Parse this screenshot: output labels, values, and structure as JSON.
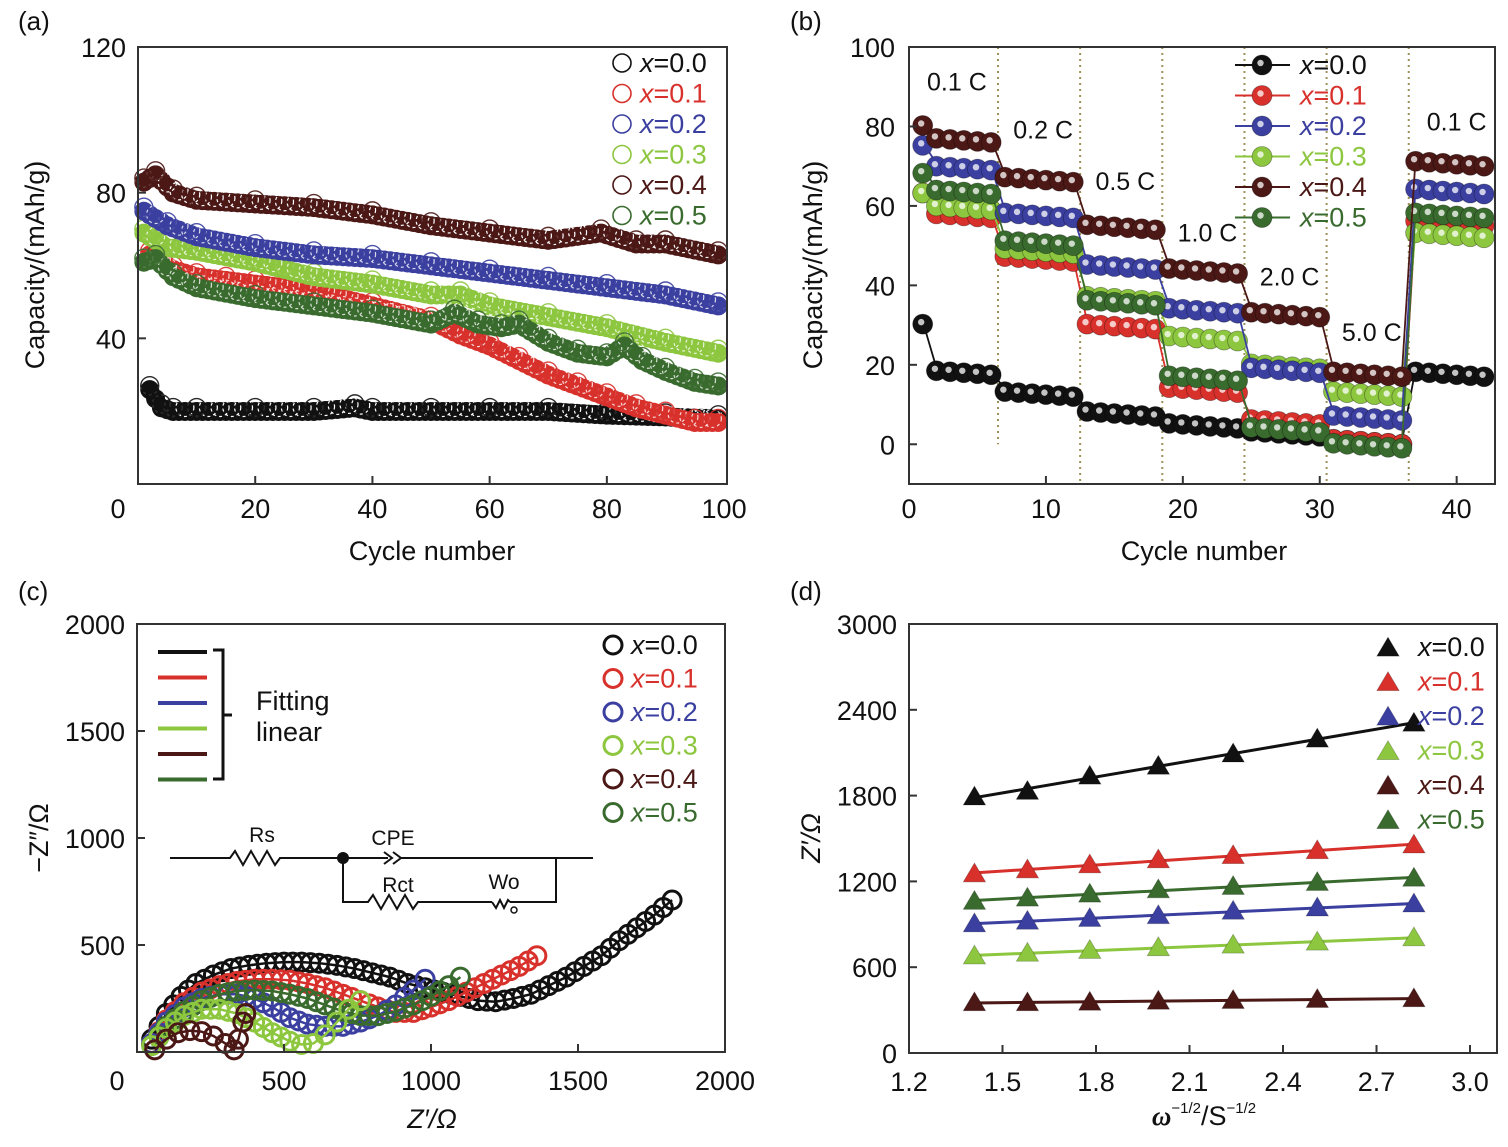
{
  "colors": {
    "x0.0": "#111111",
    "x0.1": "#d8312c",
    "x0.2": "#3b40a0",
    "x0.3": "#8dc63f",
    "x0.4": "#4b1816",
    "x0.5": "#3a6b2e",
    "divider": "#9e9158",
    "axis": "#333333"
  },
  "chart_data": [
    {
      "id": "a",
      "panel_label": "(a)",
      "type": "scatter",
      "marker": "open-circle-filled-trace",
      "xlabel": "Cycle number",
      "ylabel": "Capacity/(mAh/g)",
      "xlim": [
        0,
        100
      ],
      "ylim": [
        0,
        120
      ],
      "xticks": [
        0,
        20,
        40,
        60,
        80,
        100
      ],
      "yticks": [
        40,
        80,
        120
      ],
      "legend": "top-right",
      "series": [
        {
          "name": "x=0.0",
          "prefix": "x",
          "suffix": "=0.0",
          "color_key": "x0.0",
          "x": [
            2,
            4,
            6,
            10,
            20,
            30,
            37,
            40,
            50,
            60,
            70,
            80,
            90,
            99
          ],
          "y": [
            27,
            22,
            21,
            21,
            21,
            21,
            22,
            21,
            21,
            21,
            21,
            20,
            19.5,
            19
          ]
        },
        {
          "name": "x=0.1",
          "prefix": "x",
          "suffix": "=0.1",
          "color_key": "x0.1",
          "x": [
            2,
            6,
            10,
            15,
            20,
            30,
            40,
            50,
            55,
            60,
            65,
            70,
            75,
            80,
            85,
            90,
            95,
            99
          ],
          "y": [
            64,
            60,
            58,
            57,
            56,
            54,
            50,
            46,
            42,
            39,
            35,
            31,
            28,
            25,
            22,
            20,
            18,
            18
          ]
        },
        {
          "name": "x=0.2",
          "prefix": "x",
          "suffix": "=0.2",
          "color_key": "x0.2",
          "x": [
            1,
            5,
            10,
            20,
            30,
            40,
            50,
            60,
            70,
            80,
            90,
            99
          ],
          "y": [
            76,
            72,
            69,
            66,
            64,
            63,
            61,
            59,
            57,
            55,
            53,
            50
          ]
        },
        {
          "name": "x=0.3",
          "prefix": "x",
          "suffix": "=0.3",
          "color_key": "x0.3",
          "x": [
            1,
            5,
            10,
            20,
            25,
            30,
            40,
            50,
            55,
            60,
            70,
            80,
            90,
            99
          ],
          "y": [
            70,
            66,
            65,
            62,
            60,
            58,
            56,
            53,
            53,
            50,
            47,
            44,
            40,
            37
          ]
        },
        {
          "name": "x=0.4",
          "prefix": "x",
          "suffix": "=0.4",
          "color_key": "x0.4",
          "x": [
            1,
            3,
            6,
            10,
            20,
            30,
            40,
            50,
            60,
            70,
            79,
            85,
            90,
            99
          ],
          "y": [
            84,
            86,
            81,
            79,
            78,
            77,
            75,
            72,
            70,
            68,
            70,
            67,
            67,
            64
          ]
        },
        {
          "name": "x=0.5",
          "prefix": "x",
          "suffix": "=0.5",
          "color_key": "x0.5",
          "x": [
            1,
            3,
            6,
            10,
            20,
            30,
            40,
            50,
            54,
            58,
            62,
            65,
            70,
            75,
            80,
            83,
            86,
            90,
            95,
            99
          ],
          "y": [
            62,
            63,
            58,
            55,
            52,
            50,
            48,
            45,
            48,
            45,
            44,
            45,
            40,
            37,
            36,
            39,
            35,
            32,
            29,
            28
          ]
        }
      ]
    },
    {
      "id": "b",
      "panel_label": "(b)",
      "type": "line",
      "marker": "filled-sphere",
      "xlabel": "Cycle number",
      "ylabel": "Capacity/(mAh/g)",
      "xlim": [
        0,
        42.8
      ],
      "ylim": [
        -10,
        100
      ],
      "xticks": [
        0,
        10,
        20,
        30,
        40
      ],
      "yticks": [
        0,
        20,
        40,
        60,
        80,
        100
      ],
      "legend": "top-right",
      "rate_dividers": [
        6.5,
        12.5,
        18.5,
        24.5,
        30.5,
        36.5
      ],
      "rate_labels": [
        {
          "text": "0.1 C",
          "x": 3.5,
          "y": 89
        },
        {
          "text": "0.2 C",
          "x": 9.8,
          "y": 77
        },
        {
          "text": "0.5 C",
          "x": 15.8,
          "y": 64
        },
        {
          "text": "1.0 C",
          "x": 21.8,
          "y": 51
        },
        {
          "text": "2.0 C",
          "x": 27.8,
          "y": 40
        },
        {
          "text": "5.0 C",
          "x": 33.8,
          "y": 26
        },
        {
          "text": "0.1 C",
          "x": 40.0,
          "y": 79
        }
      ],
      "cycles_per_rate": 6,
      "rates": [
        "0.1 C",
        "0.2 C",
        "0.5 C",
        "1.0 C",
        "2.0 C",
        "5.0 C",
        "0.1 C"
      ],
      "series": [
        {
          "name": "x=0.0",
          "prefix": "x",
          "suffix": "=0.0",
          "color_key": "x0.0",
          "first_point": 31,
          "rate_capacity": [
            19.5,
            14,
            9,
            6,
            4,
            2,
            19
          ]
        },
        {
          "name": "x=0.1",
          "prefix": "x",
          "suffix": "=0.1",
          "color_key": "x0.1",
          "first_point": 64,
          "rate_capacity": [
            59,
            48,
            31,
            15,
            7,
            2,
            57
          ]
        },
        {
          "name": "x=0.2",
          "prefix": "x",
          "suffix": "=0.2",
          "color_key": "x0.2",
          "first_point": 76,
          "rate_capacity": [
            71,
            59,
            46,
            35,
            20,
            8,
            65
          ]
        },
        {
          "name": "x=0.3",
          "prefix": "x",
          "suffix": "=0.3",
          "color_key": "x0.3",
          "first_point": 64,
          "rate_capacity": [
            61,
            50,
            38,
            28,
            21,
            14,
            54
          ]
        },
        {
          "name": "x=0.4",
          "prefix": "x",
          "suffix": "=0.4",
          "color_key": "x0.4",
          "first_point": 81,
          "rate_capacity": [
            78,
            68,
            56,
            45,
            34,
            19,
            72
          ]
        },
        {
          "name": "x=0.5",
          "prefix": "x",
          "suffix": "=0.5",
          "color_key": "x0.5",
          "first_point": 69,
          "rate_capacity": [
            65,
            52,
            37,
            18,
            5,
            1,
            59
          ]
        }
      ]
    },
    {
      "id": "c",
      "panel_label": "(c)",
      "type": "scatter",
      "marker": "open-circle",
      "xlabel": "Z′/Ω",
      "ylabel": "−Z″/Ω",
      "xlim": [
        0,
        2000
      ],
      "ylim": [
        0,
        2000
      ],
      "xticks": [
        0,
        500,
        1000,
        1500,
        2000
      ],
      "yticks": [
        500,
        1000,
        1500,
        2000
      ],
      "legend": "top-right",
      "fit_legend": {
        "line1": "Fitting",
        "line2": "linear"
      },
      "circuit": {
        "labels": {
          "rs": "Rs",
          "cpe": "CPE",
          "rct": "Rct",
          "wo": "Wo",
          "wo_symbol": "W₀"
        }
      },
      "series": [
        {
          "name": "x=0.0",
          "prefix": "x",
          "suffix": "=0.0",
          "color_key": "x0.0",
          "x": [
            50,
            100,
            150,
            200,
            260,
            320,
            380,
            440,
            500,
            560,
            620,
            680,
            740,
            800,
            860,
            920,
            980,
            1040,
            1100,
            1160,
            1220,
            1280,
            1340,
            1400,
            1460,
            1520,
            1580,
            1640,
            1700,
            1760,
            1820
          ],
          "y": [
            60,
            180,
            260,
            320,
            360,
            390,
            405,
            415,
            420,
            420,
            415,
            405,
            390,
            370,
            350,
            320,
            300,
            280,
            260,
            240,
            235,
            250,
            270,
            310,
            350,
            400,
            450,
            520,
            580,
            640,
            710
          ]
        },
        {
          "name": "x=0.1",
          "prefix": "x",
          "suffix": "=0.1",
          "color_key": "x0.1",
          "x": [
            50,
            100,
            160,
            220,
            280,
            340,
            400,
            460,
            520,
            580,
            640,
            700,
            760,
            820,
            880,
            940,
            1000,
            1060,
            1120,
            1180,
            1240,
            1300,
            1360
          ],
          "y": [
            40,
            150,
            230,
            280,
            310,
            330,
            340,
            340,
            335,
            320,
            300,
            270,
            240,
            210,
            185,
            185,
            210,
            240,
            280,
            320,
            360,
            400,
            450
          ]
        },
        {
          "name": "x=0.2",
          "prefix": "x",
          "suffix": "=0.2",
          "color_key": "x0.2",
          "x": [
            50,
            100,
            160,
            220,
            280,
            340,
            400,
            460,
            520,
            580,
            640,
            700,
            760,
            820,
            880,
            940,
            980
          ],
          "y": [
            40,
            140,
            210,
            250,
            270,
            270,
            250,
            210,
            160,
            130,
            120,
            120,
            140,
            170,
            220,
            290,
            340
          ]
        },
        {
          "name": "x=0.3",
          "prefix": "x",
          "suffix": "=0.3",
          "color_key": "x0.3",
          "x": [
            50,
            100,
            160,
            220,
            280,
            340,
            400,
            460,
            520,
            560,
            600,
            640,
            680,
            720,
            760
          ],
          "y": [
            30,
            110,
            170,
            200,
            200,
            180,
            140,
            90,
            50,
            35,
            40,
            80,
            140,
            200,
            240
          ]
        },
        {
          "name": "x=0.4",
          "prefix": "x",
          "suffix": "=0.4",
          "color_key": "x0.4",
          "x": [
            60,
            100,
            140,
            180,
            220,
            260,
            300,
            330,
            345,
            360,
            370
          ],
          "y": [
            10,
            60,
            90,
            100,
            95,
            75,
            40,
            10,
            60,
            140,
            180
          ]
        },
        {
          "name": "x=0.5",
          "prefix": "x",
          "suffix": "=0.5",
          "color_key": "x0.5",
          "x": [
            50,
            100,
            160,
            220,
            280,
            340,
            400,
            460,
            520,
            580,
            640,
            700,
            760,
            820,
            880,
            940,
            1000,
            1060,
            1100
          ],
          "y": [
            30,
            120,
            190,
            240,
            270,
            285,
            290,
            285,
            270,
            250,
            220,
            190,
            170,
            170,
            190,
            220,
            260,
            310,
            350
          ]
        }
      ]
    },
    {
      "id": "d",
      "panel_label": "(d)",
      "type": "line",
      "marker": "filled-triangle",
      "xlabel_main": "ω",
      "xlabel_sup1": "−1/2",
      "xlabel_mid": "/S",
      "xlabel_sup2": "−1/2",
      "ylabel": "Z′/Ω",
      "xlim": [
        1.2,
        3.0
      ],
      "ylim": [
        0,
        3000
      ],
      "xticks": [
        "1.2",
        "1.5",
        "1.8",
        "2.1",
        "2.4",
        "2.7",
        "3.0"
      ],
      "yticks": [
        0,
        600,
        1200,
        1800,
        2400,
        3000
      ],
      "legend": "top-right",
      "x": [
        1.41,
        1.58,
        1.78,
        2.0,
        2.24,
        2.51,
        2.82
      ],
      "series": [
        {
          "name": "x=0.0",
          "prefix": "x",
          "suffix": "=0.0",
          "color_key": "x0.0",
          "y": [
            1791,
            1830,
            1937,
            2006,
            2092,
            2196,
            2307
          ]
        },
        {
          "name": "x=0.1",
          "prefix": "x",
          "suffix": "=0.1",
          "color_key": "x0.1",
          "y": [
            1253,
            1281,
            1316,
            1351,
            1381,
            1415,
            1455
          ]
        },
        {
          "name": "x=0.2",
          "prefix": "x",
          "suffix": "=0.2",
          "color_key": "x0.2",
          "y": [
            904,
            922,
            941,
            961,
            992,
            1015,
            1043
          ]
        },
        {
          "name": "x=0.3",
          "prefix": "x",
          "suffix": "=0.3",
          "color_key": "x0.3",
          "y": [
            679,
            698,
            718,
            737,
            755,
            776,
            806
          ]
        },
        {
          "name": "x=0.4",
          "prefix": "x",
          "suffix": "=0.4",
          "color_key": "x0.4",
          "y": [
            352,
            352,
            356,
            363,
            368,
            375,
            380
          ]
        },
        {
          "name": "x=0.5",
          "prefix": "x",
          "suffix": "=0.5",
          "color_key": "x0.5",
          "y": [
            1061,
            1084,
            1112,
            1142,
            1165,
            1193,
            1223
          ]
        }
      ]
    }
  ]
}
